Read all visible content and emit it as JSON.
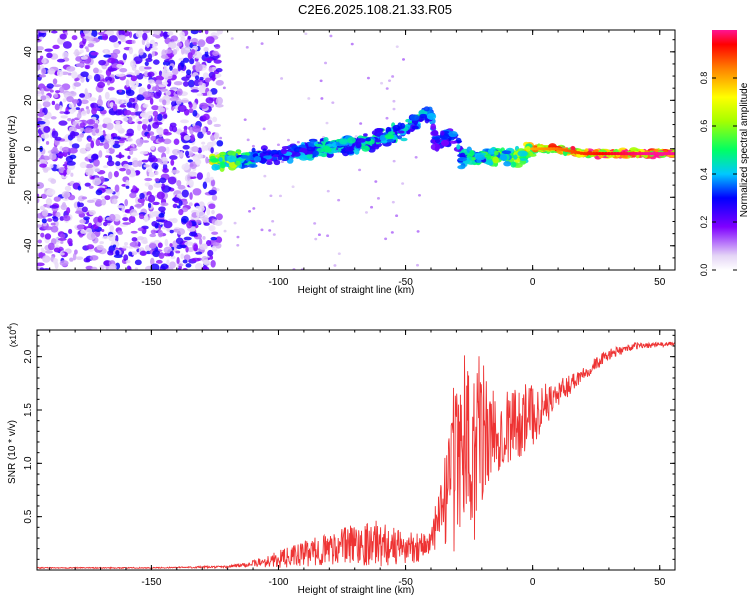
{
  "title": "C2E6.2025.108.21.33.R05",
  "chart_data": [
    {
      "type": "heatmap",
      "title": "C2E6.2025.108.21.33.R05",
      "xlabel": "Height of straight line (km)",
      "ylabel": "Frequency (Hz)",
      "xlim": [
        -195,
        56
      ],
      "ylim": [
        -50,
        49
      ],
      "xticks": [
        -150,
        -100,
        -50,
        0,
        50
      ],
      "xtick_labels": [
        "-150",
        "-100",
        "-50",
        "0",
        "50"
      ],
      "yticks": [
        -40,
        -20,
        0,
        20,
        40
      ],
      "ytick_labels": [
        "-40",
        "-20",
        "0",
        "20",
        "40"
      ],
      "colorbar": {
        "label": "Normalized spectral amplitude",
        "range": [
          0,
          1
        ],
        "ticks": [
          0.0,
          0.2,
          0.4,
          0.6,
          0.8
        ],
        "tick_labels": [
          "0.0",
          "0.2",
          "0.4",
          "0.6",
          "0.8"
        ]
      },
      "ridge": [
        {
          "x": -125,
          "y": -5,
          "amp": 0.7
        },
        {
          "x": -118,
          "y": -5,
          "amp": 0.6
        },
        {
          "x": -110,
          "y": -4,
          "amp": 0.4
        },
        {
          "x": -100,
          "y": -3,
          "amp": 0.35
        },
        {
          "x": -90,
          "y": -1,
          "amp": 0.4
        },
        {
          "x": -80,
          "y": 1,
          "amp": 0.45
        },
        {
          "x": -70,
          "y": 2,
          "amp": 0.4
        },
        {
          "x": -60,
          "y": 4,
          "amp": 0.45
        },
        {
          "x": -50,
          "y": 8,
          "amp": 0.4
        },
        {
          "x": -45,
          "y": 12,
          "amp": 0.45
        },
        {
          "x": -40,
          "y": 15,
          "amp": 0.35
        },
        {
          "x": -38,
          "y": 3,
          "amp": 0.3
        },
        {
          "x": -30,
          "y": 6,
          "amp": 0.35
        },
        {
          "x": -28,
          "y": -4,
          "amp": 0.45
        },
        {
          "x": -20,
          "y": -3,
          "amp": 0.5
        },
        {
          "x": -10,
          "y": -3,
          "amp": 0.6
        },
        {
          "x": -5,
          "y": -3,
          "amp": 0.65
        },
        {
          "x": 0,
          "y": 0,
          "amp": 0.8
        },
        {
          "x": 10,
          "y": 0,
          "amp": 0.85
        },
        {
          "x": 20,
          "y": -2,
          "amp": 0.9
        },
        {
          "x": 30,
          "y": -2,
          "amp": 0.95
        },
        {
          "x": 45,
          "y": -2,
          "amp": 1.0
        },
        {
          "x": 56,
          "y": -2,
          "amp": 1.0
        }
      ]
    },
    {
      "type": "line",
      "xlabel": "Height of straight line (km)",
      "ylabel": "SNR (10 * v/v)",
      "y_multiplier": "(x10",
      "y_multiplier_exp": "4",
      "y_multiplier_close": ")",
      "xlim": [
        -195,
        56
      ],
      "ylim": [
        0,
        2.25
      ],
      "xticks": [
        -150,
        -100,
        -50,
        0,
        50
      ],
      "xtick_labels": [
        "-150",
        "-100",
        "-50",
        "0",
        "50"
      ],
      "yticks": [
        0.5,
        1.0,
        1.5,
        2.0
      ],
      "ytick_labels": [
        "0.5",
        "1.0",
        "1.5",
        "2.0"
      ],
      "color": "#ee3333",
      "envelope": [
        {
          "x": -195,
          "y": 0.02,
          "noise": 0.005
        },
        {
          "x": -150,
          "y": 0.02,
          "noise": 0.005
        },
        {
          "x": -120,
          "y": 0.03,
          "noise": 0.01
        },
        {
          "x": -110,
          "y": 0.06,
          "noise": 0.03
        },
        {
          "x": -100,
          "y": 0.1,
          "noise": 0.08
        },
        {
          "x": -90,
          "y": 0.15,
          "noise": 0.12
        },
        {
          "x": -80,
          "y": 0.2,
          "noise": 0.15
        },
        {
          "x": -70,
          "y": 0.25,
          "noise": 0.2
        },
        {
          "x": -60,
          "y": 0.25,
          "noise": 0.22
        },
        {
          "x": -50,
          "y": 0.2,
          "noise": 0.15
        },
        {
          "x": -40,
          "y": 0.25,
          "noise": 0.15
        },
        {
          "x": -35,
          "y": 0.6,
          "noise": 0.4
        },
        {
          "x": -30,
          "y": 1.0,
          "noise": 0.6
        },
        {
          "x": -25,
          "y": 1.15,
          "noise": 0.75
        },
        {
          "x": -20,
          "y": 1.15,
          "noise": 0.6
        },
        {
          "x": -15,
          "y": 1.3,
          "noise": 0.4
        },
        {
          "x": -10,
          "y": 1.35,
          "noise": 0.35
        },
        {
          "x": -5,
          "y": 1.4,
          "noise": 0.35
        },
        {
          "x": 0,
          "y": 1.45,
          "noise": 0.3
        },
        {
          "x": 5,
          "y": 1.55,
          "noise": 0.2
        },
        {
          "x": 10,
          "y": 1.65,
          "noise": 0.12
        },
        {
          "x": 20,
          "y": 1.85,
          "noise": 0.08
        },
        {
          "x": 30,
          "y": 2.02,
          "noise": 0.05
        },
        {
          "x": 40,
          "y": 2.1,
          "noise": 0.03
        },
        {
          "x": 56,
          "y": 2.12,
          "noise": 0.02
        }
      ]
    }
  ]
}
